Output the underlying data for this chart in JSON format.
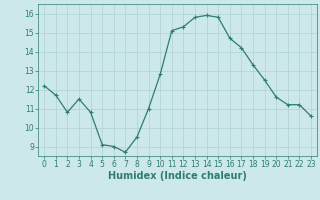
{
  "x": [
    0,
    1,
    2,
    3,
    4,
    5,
    6,
    7,
    8,
    9,
    10,
    11,
    12,
    13,
    14,
    15,
    16,
    17,
    18,
    19,
    20,
    21,
    22,
    23
  ],
  "y": [
    12.2,
    11.7,
    10.8,
    11.5,
    10.8,
    9.1,
    9.0,
    8.7,
    9.5,
    11.0,
    12.8,
    15.1,
    15.3,
    15.8,
    15.9,
    15.8,
    14.7,
    14.2,
    13.3,
    12.5,
    11.6,
    11.2,
    11.2,
    10.6
  ],
  "line_color": "#2e7d6e",
  "marker": "+",
  "marker_size": 3,
  "bg_color": "#cde8e8",
  "grid_color": "#b0d0d0",
  "xlabel": "Humidex (Indice chaleur)",
  "xlim": [
    -0.5,
    23.5
  ],
  "ylim": [
    8.5,
    16.5
  ],
  "yticks": [
    9,
    10,
    11,
    12,
    13,
    14,
    15,
    16
  ],
  "xticks": [
    0,
    1,
    2,
    3,
    4,
    5,
    6,
    7,
    8,
    9,
    10,
    11,
    12,
    13,
    14,
    15,
    16,
    17,
    18,
    19,
    20,
    21,
    22,
    23
  ],
  "tick_label_fontsize": 5.5,
  "xlabel_fontsize": 7,
  "line_width": 0.9,
  "marker_edge_width": 0.8
}
